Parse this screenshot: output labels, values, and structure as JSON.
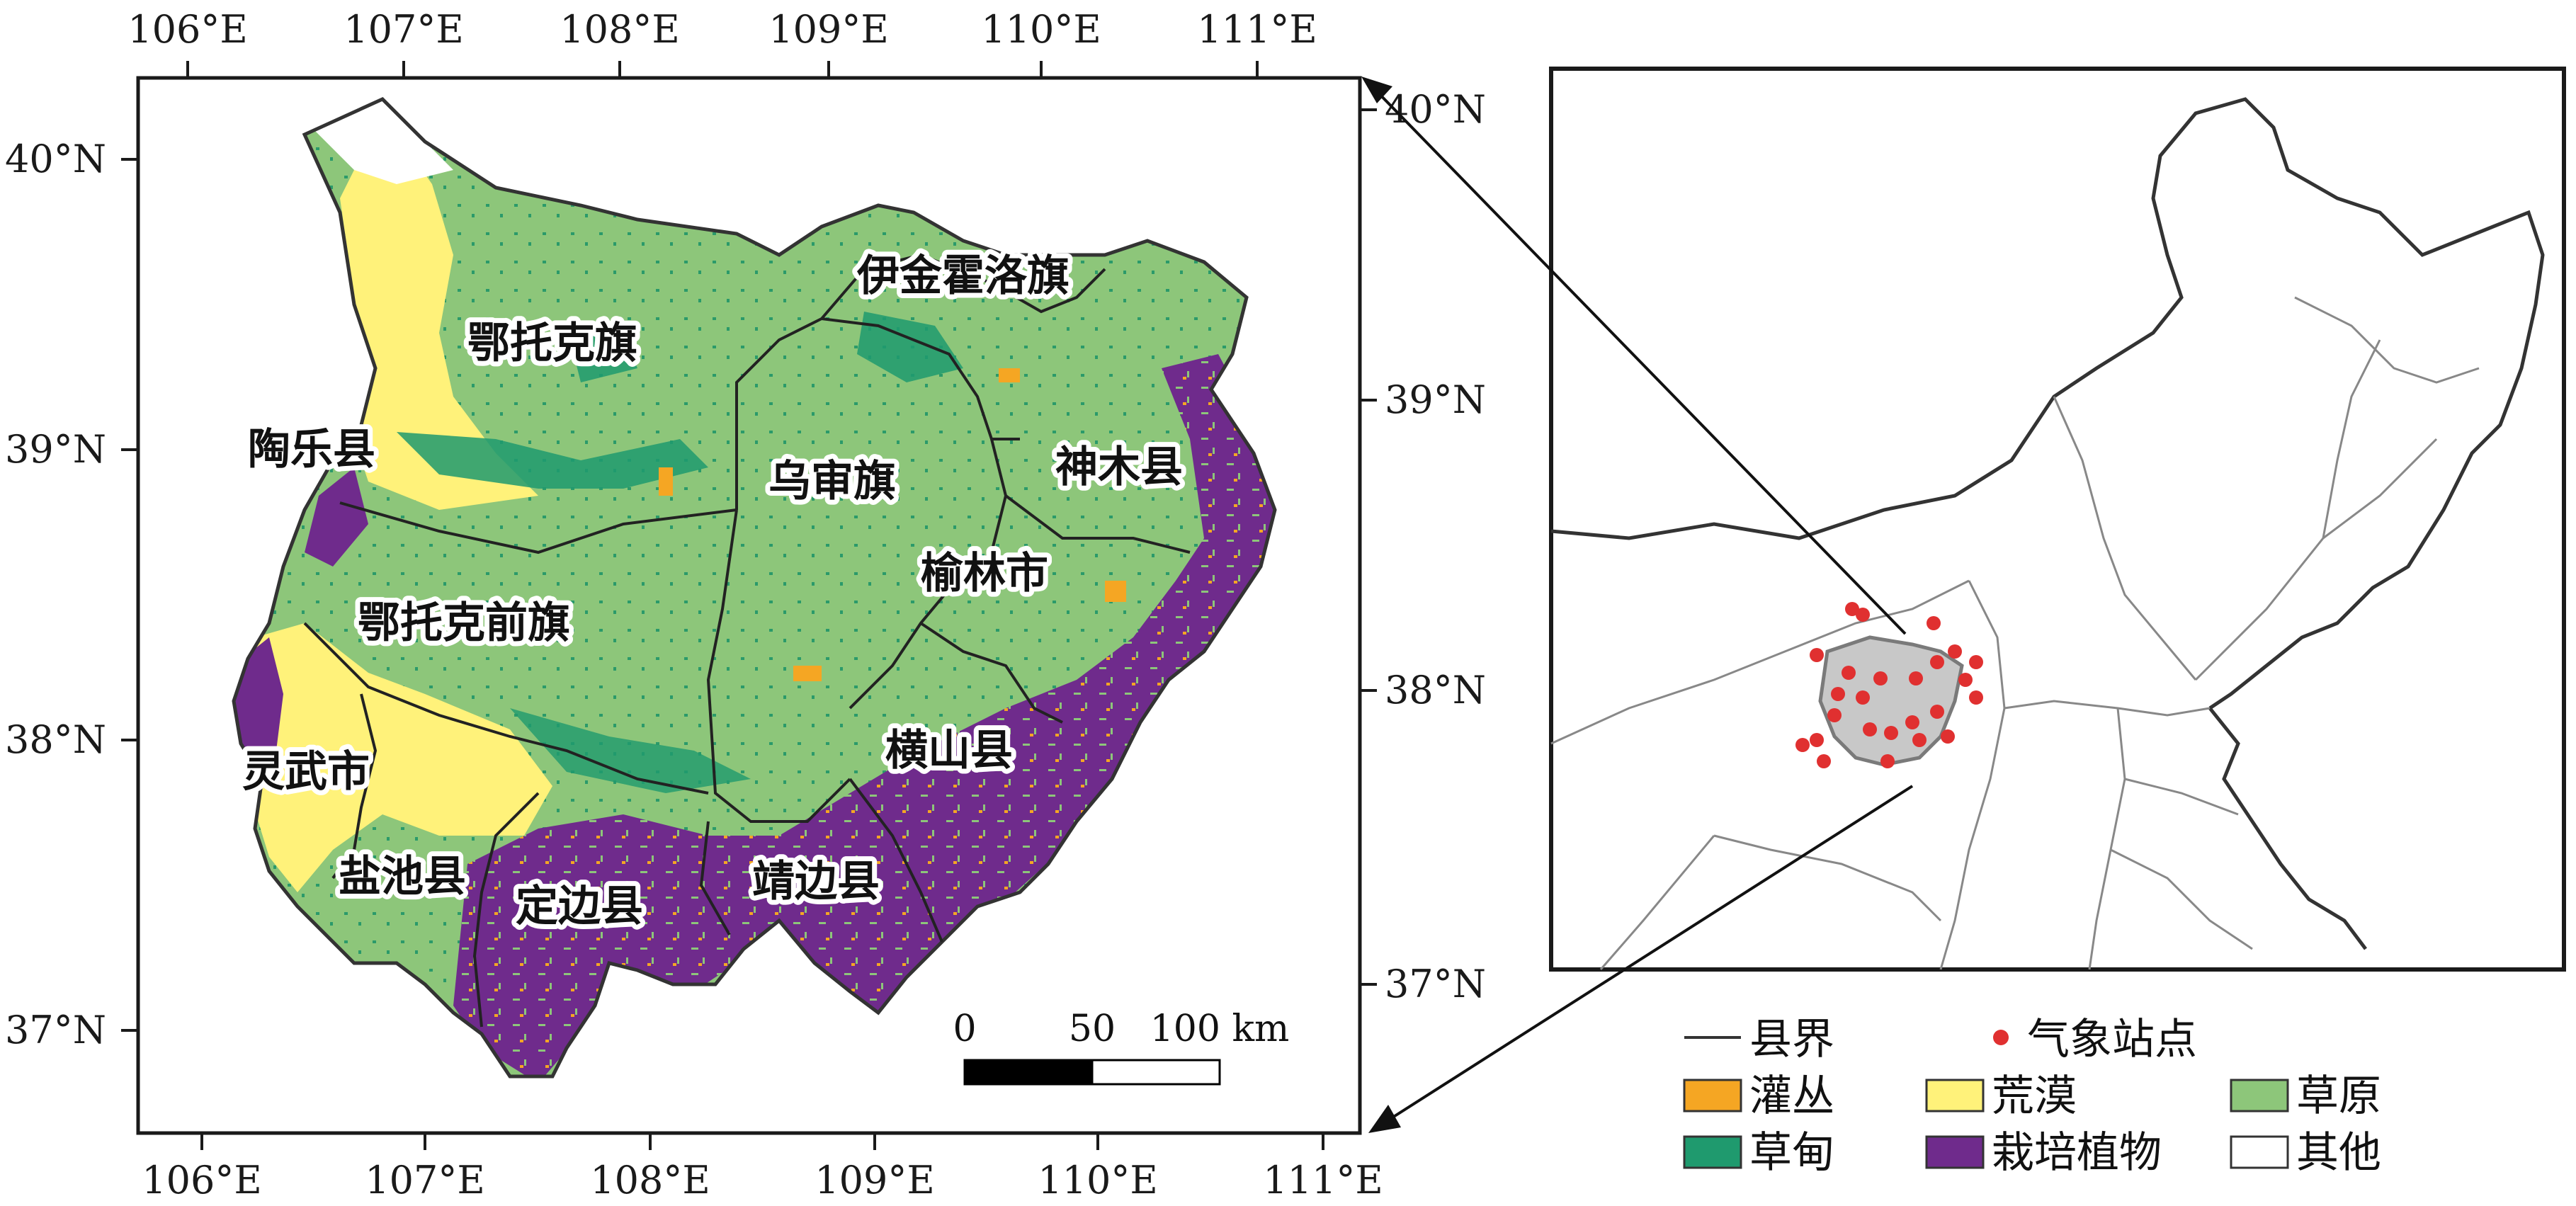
{
  "main_map": {
    "top_ticks": [
      "106°E",
      "107°E",
      "108°E",
      "109°E",
      "110°E",
      "111°E"
    ],
    "bottom_ticks": [
      "106°E",
      "107°E",
      "108°E",
      "109°E",
      "110°E",
      "111°E"
    ],
    "left_ticks": [
      "40°N",
      "39°N",
      "38°N",
      "37°N"
    ],
    "right_ticks": [
      "40°N",
      "39°N",
      "38°N",
      "37°N"
    ],
    "counties": [
      {
        "name": "鄂托克旗"
      },
      {
        "name": "伊金霍洛旗"
      },
      {
        "name": "陶乐县"
      },
      {
        "name": "乌审旗"
      },
      {
        "name": "神木县"
      },
      {
        "name": "榆林市"
      },
      {
        "name": "鄂托克前旗"
      },
      {
        "name": "灵武市"
      },
      {
        "name": "横山县"
      },
      {
        "name": "盐池县"
      },
      {
        "name": "定边县"
      },
      {
        "name": "靖边县"
      }
    ],
    "scale_bar": {
      "labels": [
        "0",
        "50",
        "100 km"
      ]
    }
  },
  "legend": {
    "line_items": [
      {
        "label": "县界",
        "icon": "line-icon"
      },
      {
        "label": "气象站点",
        "icon": "red-dot-icon"
      }
    ],
    "fill_items": [
      {
        "label": "灌丛",
        "color": "#f5a623"
      },
      {
        "label": "荒漠",
        "color": "#fff27a"
      },
      {
        "label": "草原",
        "color": "#8dc67a"
      },
      {
        "label": "草甸",
        "color": "#1f9a6e"
      },
      {
        "label": "栽培植物",
        "color": "#6f2b8c"
      },
      {
        "label": "其他",
        "color": "#ffffff"
      }
    ]
  },
  "colors": {
    "steppe": "#8dc67a",
    "desert": "#fff27a",
    "meadow": "#1f9a6e",
    "cultivated": "#6f2b8c",
    "shrub": "#f5a623",
    "station": "#e03030",
    "study_area": "#c8c8c8"
  }
}
